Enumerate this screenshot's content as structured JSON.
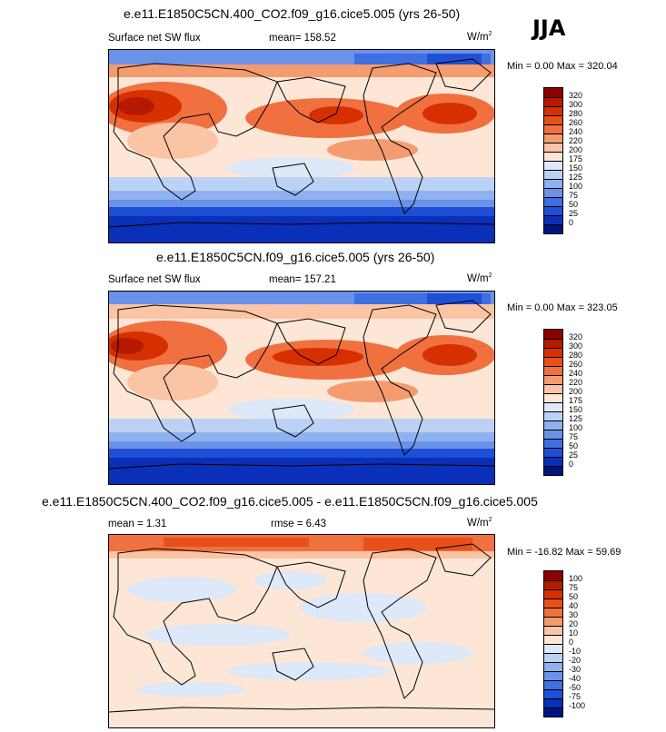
{
  "season": "JJA",
  "panels": [
    {
      "title": "e.e11.E1850C5CN.400_CO2.f09_g16.cice5.005 (yrs 26-50)",
      "left_label": "Surface net SW flux",
      "mid_label": "mean= 158.52",
      "units": "W/m",
      "units_sup": "2",
      "minmax": "Min =   0.00 Max = 320.04",
      "colorbar_labels": [
        "320",
        "300",
        "280",
        "260",
        "240",
        "220",
        "200",
        "175",
        "150",
        "125",
        "100",
        "75",
        "50",
        "25",
        "0"
      ]
    },
    {
      "title": "e.e11.E1850C5CN.f09_g16.cice5.005 (yrs 26-50)",
      "left_label": "Surface net SW flux",
      "mid_label": "mean= 157.21",
      "units": "W/m",
      "units_sup": "2",
      "minmax": "Min =   0.00 Max = 323.05",
      "colorbar_labels": [
        "320",
        "300",
        "280",
        "260",
        "240",
        "220",
        "200",
        "175",
        "150",
        "125",
        "100",
        "75",
        "50",
        "25",
        "0"
      ]
    },
    {
      "title": "e.e11.E1850C5CN.400_CO2.f09_g16.cice5.005 - e.e11.E1850C5CN.f09_g16.cice5.005",
      "left_label": "mean =   1.31",
      "mid_label": "rmse =   6.43",
      "units": "W/m",
      "units_sup": "2",
      "minmax": "Min = -16.82 Max =  59.69",
      "colorbar_labels": [
        "100",
        "75",
        "50",
        "40",
        "30",
        "20",
        "10",
        "0",
        "-10",
        "-20",
        "-30",
        "-40",
        "-50",
        "-75",
        "-100"
      ]
    }
  ],
  "colors": {
    "abs_scale": [
      "#8b0000",
      "#b51a00",
      "#d73000",
      "#e8501a",
      "#f07040",
      "#f59b70",
      "#fbc4a4",
      "#fde6d6",
      "#dde8f8",
      "#bcd2f4",
      "#8fb1ef",
      "#6a93e8",
      "#3f6fe0",
      "#1f4fd5",
      "#0a2fb8",
      "#001480"
    ],
    "diff_scale": [
      "#8b0000",
      "#b51a00",
      "#d73000",
      "#e8501a",
      "#f07040",
      "#f59b70",
      "#fbc4a4",
      "#fde6d6",
      "#dde8f8",
      "#bcd2f4",
      "#8fb1ef",
      "#6a93e8",
      "#3f6fe0",
      "#1f4fd5",
      "#0a2fb8",
      "#001480"
    ]
  }
}
